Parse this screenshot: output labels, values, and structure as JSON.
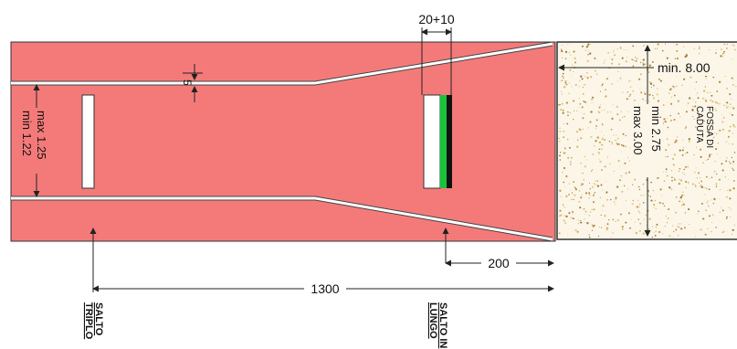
{
  "labels": {
    "dim_top": "20+10",
    "dim_five": "5",
    "dim_lane_min": "min 1.22",
    "dim_lane_max": "max 1.25",
    "dim_pit_length": "min. 8.00",
    "dim_pit_width_min": "min 2.75",
    "dim_pit_width_max": "max 3.00",
    "pit_name_line1": "FOSSA DI",
    "pit_name_line2": "CADUTA",
    "dim_200": "200",
    "dim_1300": "1300",
    "triple_line1": "SALTO",
    "triple_line2": "TRIPLO",
    "long_line1": "SALTO IN",
    "long_line2": "LUNGO"
  },
  "colors": {
    "track": "#f47a7a",
    "sand": "#fbf6e8",
    "board_green": "#19c33b",
    "board_black": "#111111",
    "line": "#222222"
  }
}
